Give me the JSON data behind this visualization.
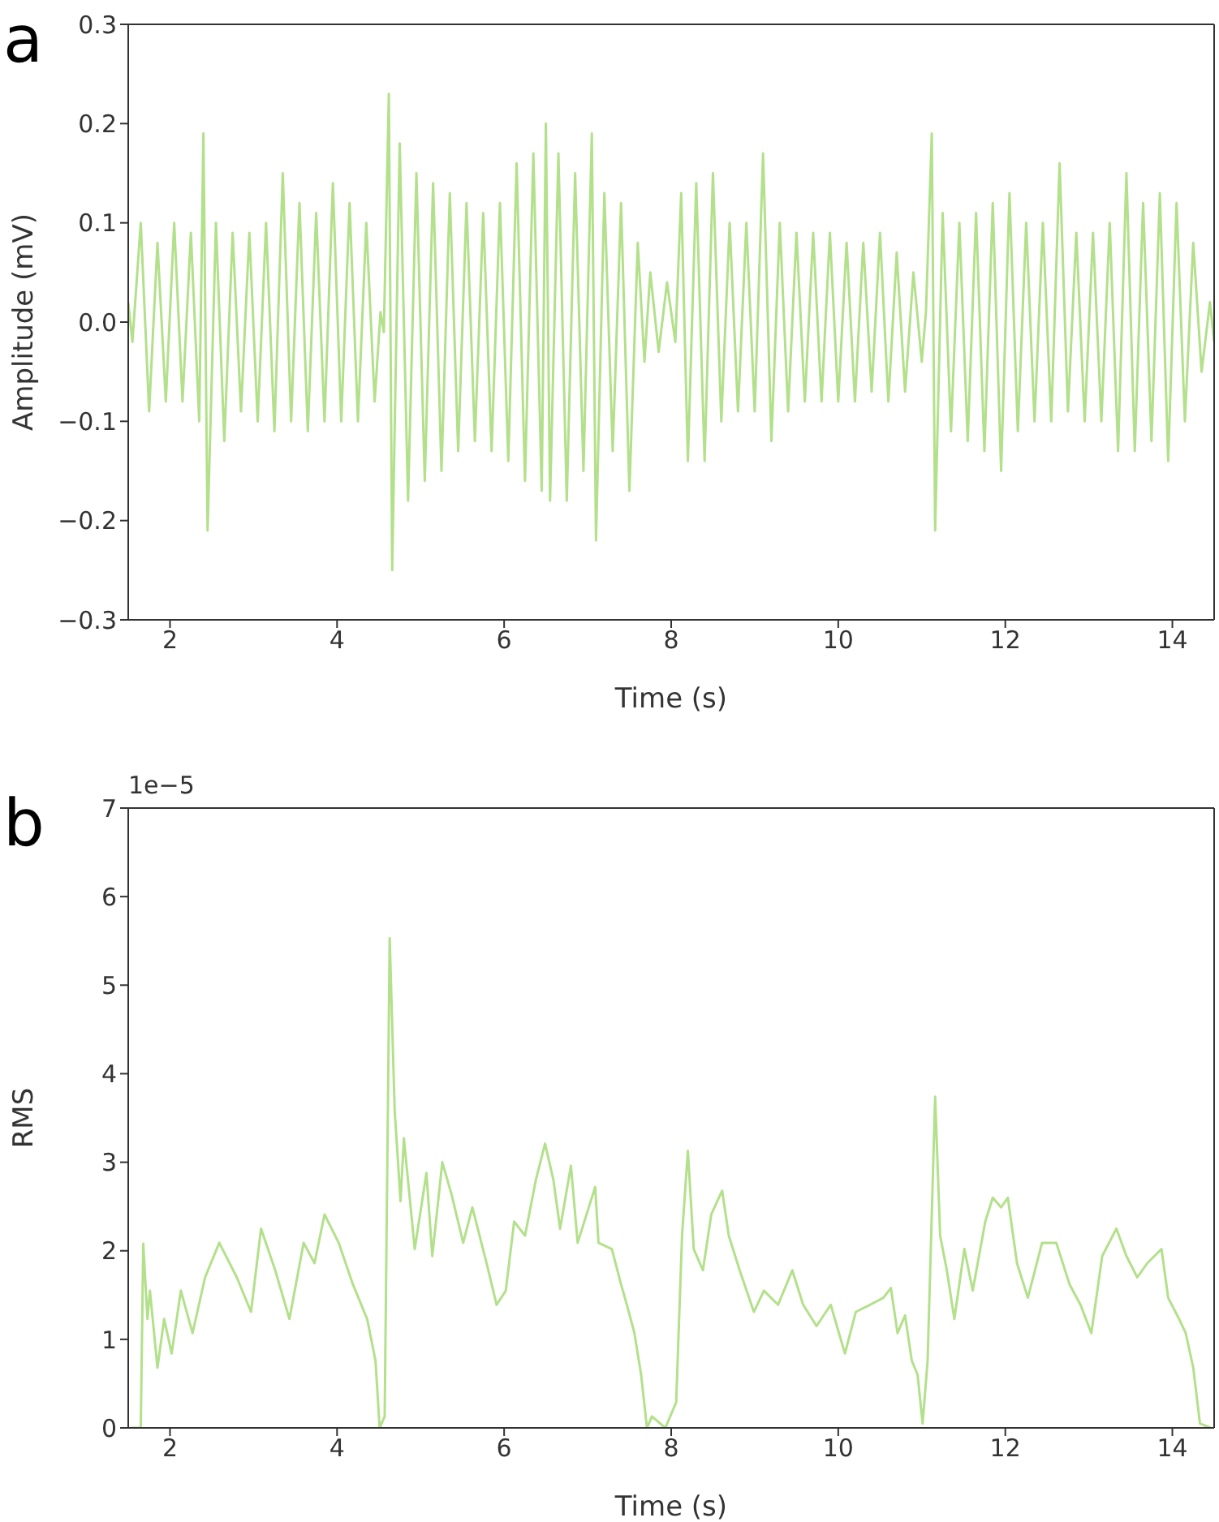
{
  "chart_data": [
    {
      "type": "line",
      "title": "a",
      "xlabel": "Time (s)",
      "ylabel": "Amplitude (mV)",
      "xlim": [
        1.5,
        14.5
      ],
      "xticks": [
        2,
        4,
        6,
        8,
        10,
        12,
        14
      ],
      "ylim": [
        -0.3,
        0.3
      ],
      "yticks": [
        {
          "value": -0.3,
          "label": "−0.3"
        },
        {
          "value": -0.2,
          "label": "−0.2"
        },
        {
          "value": -0.1,
          "label": "−0.1"
        },
        {
          "value": 0,
          "label": "0.0"
        },
        {
          "value": 0.1,
          "label": "0.1"
        },
        {
          "value": 0.2,
          "label": "0.2"
        },
        {
          "value": 0.3,
          "label": "0.3"
        }
      ],
      "series": [
        {
          "color": "#b3e08b",
          "x": [
            1.5,
            1.55,
            1.65,
            1.75,
            1.85,
            1.95,
            2.05,
            2.15,
            2.25,
            2.35,
            2.4,
            2.45,
            2.55,
            2.65,
            2.75,
            2.85,
            2.95,
            3.05,
            3.15,
            3.25,
            3.35,
            3.45,
            3.55,
            3.65,
            3.75,
            3.85,
            3.95,
            4.05,
            4.15,
            4.25,
            4.35,
            4.45,
            4.52,
            4.56,
            4.62,
            4.66,
            4.75,
            4.85,
            4.95,
            5.05,
            5.15,
            5.25,
            5.35,
            5.45,
            5.55,
            5.65,
            5.75,
            5.85,
            5.95,
            6.05,
            6.15,
            6.25,
            6.35,
            6.45,
            6.5,
            6.55,
            6.65,
            6.75,
            6.85,
            6.95,
            7.05,
            7.1,
            7.2,
            7.3,
            7.4,
            7.5,
            7.6,
            7.68,
            7.75,
            7.85,
            7.95,
            8.05,
            8.12,
            8.2,
            8.3,
            8.4,
            8.5,
            8.6,
            8.7,
            8.8,
            8.9,
            9.0,
            9.1,
            9.2,
            9.3,
            9.4,
            9.5,
            9.6,
            9.7,
            9.8,
            9.9,
            10.0,
            10.1,
            10.2,
            10.3,
            10.4,
            10.5,
            10.6,
            10.7,
            10.8,
            10.9,
            11.0,
            11.05,
            11.12,
            11.16,
            11.25,
            11.35,
            11.45,
            11.55,
            11.65,
            11.75,
            11.85,
            11.95,
            12.05,
            12.15,
            12.25,
            12.35,
            12.45,
            12.55,
            12.65,
            12.75,
            12.85,
            12.95,
            13.05,
            13.15,
            13.25,
            13.35,
            13.45,
            13.55,
            13.65,
            13.75,
            13.85,
            13.95,
            14.05,
            14.15,
            14.25,
            14.35,
            14.45,
            14.5
          ],
          "values": [
            0.02,
            -0.02,
            0.1,
            -0.09,
            0.08,
            -0.08,
            0.1,
            -0.08,
            0.09,
            -0.1,
            0.19,
            -0.21,
            0.1,
            -0.12,
            0.09,
            -0.09,
            0.09,
            -0.1,
            0.1,
            -0.11,
            0.15,
            -0.1,
            0.12,
            -0.11,
            0.11,
            -0.1,
            0.14,
            -0.1,
            0.12,
            -0.1,
            0.1,
            -0.08,
            0.01,
            -0.01,
            0.23,
            -0.25,
            0.18,
            -0.18,
            0.15,
            -0.16,
            0.14,
            -0.15,
            0.13,
            -0.13,
            0.12,
            -0.12,
            0.11,
            -0.13,
            0.12,
            -0.14,
            0.16,
            -0.16,
            0.17,
            -0.17,
            0.2,
            -0.18,
            0.17,
            -0.18,
            0.15,
            -0.15,
            0.19,
            -0.22,
            0.13,
            -0.13,
            0.12,
            -0.17,
            0.08,
            -0.04,
            0.05,
            -0.03,
            0.04,
            -0.02,
            0.13,
            -0.14,
            0.14,
            -0.14,
            0.15,
            -0.1,
            0.1,
            -0.09,
            0.1,
            -0.09,
            0.17,
            -0.12,
            0.1,
            -0.09,
            0.09,
            -0.08,
            0.09,
            -0.08,
            0.09,
            -0.08,
            0.08,
            -0.08,
            0.08,
            -0.07,
            0.09,
            -0.08,
            0.07,
            -0.07,
            0.05,
            -0.04,
            0.01,
            0.19,
            -0.21,
            0.11,
            -0.11,
            0.1,
            -0.12,
            0.11,
            -0.13,
            0.12,
            -0.15,
            0.13,
            -0.11,
            0.1,
            -0.1,
            0.1,
            -0.1,
            0.16,
            -0.09,
            0.09,
            -0.1,
            0.09,
            -0.1,
            0.1,
            -0.13,
            0.15,
            -0.13,
            0.12,
            -0.12,
            0.13,
            -0.14,
            0.12,
            -0.1,
            0.08,
            -0.05,
            0.02,
            -0.02
          ]
        }
      ]
    },
    {
      "type": "line",
      "title": "b",
      "xlabel": "Time (s)",
      "ylabel": "RMS",
      "annotations": [
        "1e−5"
      ],
      "xlim": [
        1.5,
        14.5
      ],
      "xticks": [
        2,
        4,
        6,
        8,
        10,
        12,
        14
      ],
      "ylim": [
        0,
        7
      ],
      "yticks": [
        0,
        1,
        2,
        3,
        4,
        5,
        6,
        7
      ],
      "series": [
        {
          "color": "#b3e08b",
          "x": [
            1.54,
            1.65,
            1.68,
            1.73,
            1.76,
            1.85,
            1.93,
            2.02,
            2.13,
            2.27,
            2.42,
            2.59,
            2.8,
            2.97,
            3.09,
            3.26,
            3.43,
            3.6,
            3.73,
            3.85,
            4.02,
            4.19,
            4.36,
            4.46,
            4.51,
            4.57,
            4.63,
            4.69,
            4.76,
            4.8,
            4.93,
            5.07,
            5.14,
            5.26,
            5.37,
            5.51,
            5.62,
            5.79,
            5.91,
            6.02,
            6.12,
            6.25,
            6.38,
            6.49,
            6.59,
            6.67,
            6.8,
            6.88,
            7.09,
            7.13,
            7.29,
            7.4,
            7.47,
            7.56,
            7.64,
            7.71,
            7.77,
            7.93,
            8.06,
            8.13,
            8.2,
            8.27,
            8.38,
            8.48,
            8.61,
            8.69,
            8.82,
            8.99,
            9.11,
            9.28,
            9.45,
            9.58,
            9.74,
            9.91,
            10.08,
            10.21,
            10.38,
            10.54,
            10.63,
            10.71,
            10.8,
            10.88,
            10.95,
            11.01,
            11.07,
            11.16,
            11.22,
            11.3,
            11.39,
            11.51,
            11.61,
            11.76,
            11.85,
            11.95,
            12.03,
            12.14,
            12.27,
            12.44,
            12.61,
            12.77,
            12.9,
            13.03,
            13.16,
            13.33,
            13.45,
            13.58,
            13.7,
            13.87,
            13.95,
            14.08,
            14.16,
            14.25,
            14.33,
            14.46
          ],
          "values": [
            0,
            0,
            2.08,
            1.23,
            1.55,
            0.68,
            1.23,
            0.84,
            1.55,
            1.07,
            1.7,
            2.09,
            1.7,
            1.31,
            2.25,
            1.78,
            1.23,
            2.09,
            1.86,
            2.41,
            2.09,
            1.62,
            1.23,
            0.76,
            0,
            0.13,
            5.53,
            3.58,
            2.56,
            3.27,
            2.02,
            2.88,
            1.94,
            3.0,
            2.64,
            2.09,
            2.49,
            1.86,
            1.39,
            1.55,
            2.33,
            2.17,
            2.8,
            3.21,
            2.8,
            2.25,
            2.96,
            2.09,
            2.72,
            2.09,
            2.02,
            1.62,
            1.39,
            1.07,
            0.6,
            0,
            0.13,
            0,
            0.29,
            2.17,
            3.13,
            2.02,
            1.78,
            2.41,
            2.68,
            2.17,
            1.78,
            1.31,
            1.55,
            1.39,
            1.78,
            1.39,
            1.15,
            1.39,
            0.84,
            1.31,
            1.39,
            1.47,
            1.58,
            1.07,
            1.27,
            0.76,
            0.6,
            0.05,
            0.76,
            3.74,
            2.17,
            1.78,
            1.23,
            2.02,
            1.55,
            2.33,
            2.6,
            2.49,
            2.6,
            1.86,
            1.47,
            2.09,
            2.09,
            1.62,
            1.39,
            1.07,
            1.94,
            2.25,
            1.94,
            1.7,
            1.86,
            2.02,
            1.47,
            1.23,
            1.07,
            0.68,
            0.05,
            0
          ]
        }
      ]
    }
  ]
}
